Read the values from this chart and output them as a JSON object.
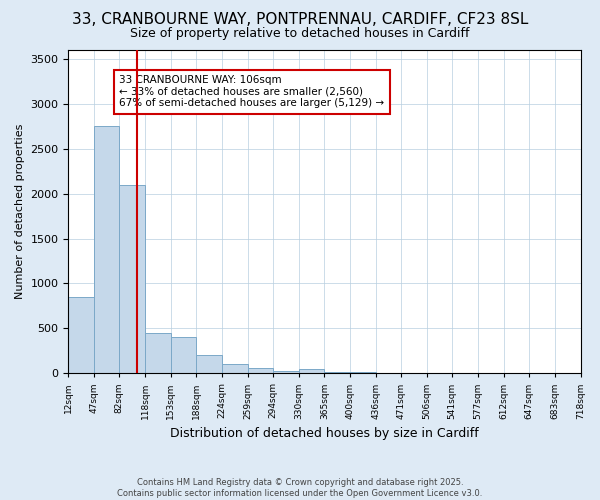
{
  "title_line1": "33, CRANBOURNE WAY, PONTPRENNAU, CARDIFF, CF23 8SL",
  "title_line2": "Size of property relative to detached houses in Cardiff",
  "xlabel": "Distribution of detached houses by size in Cardiff",
  "ylabel": "Number of detached properties",
  "bar_edges": [
    12,
    47,
    82,
    118,
    153,
    188,
    224,
    259,
    294,
    330,
    365,
    400,
    436,
    471,
    506,
    541,
    577,
    612,
    647,
    683,
    718
  ],
  "bar_heights": [
    850,
    2750,
    2100,
    450,
    400,
    200,
    100,
    60,
    30,
    50,
    15,
    10,
    5,
    5,
    3,
    2,
    2,
    1,
    1,
    0
  ],
  "bar_color": "#c5d8ea",
  "bar_edgecolor": "#7ba8c8",
  "property_sqm": 106,
  "vline_color": "#cc0000",
  "annotation_line1": "33 CRANBOURNE WAY: 106sqm",
  "annotation_line2": "← 33% of detached houses are smaller (2,560)",
  "annotation_line3": "67% of semi-detached houses are larger (5,129) →",
  "ylim": [
    0,
    3600
  ],
  "xlim": [
    12,
    718
  ],
  "yticks": [
    0,
    500,
    1000,
    1500,
    2000,
    2500,
    3000,
    3500
  ],
  "tick_labels": [
    "12sqm",
    "47sqm",
    "82sqm",
    "118sqm",
    "153sqm",
    "188sqm",
    "224sqm",
    "259sqm",
    "294sqm",
    "330sqm",
    "365sqm",
    "400sqm",
    "436sqm",
    "471sqm",
    "506sqm",
    "541sqm",
    "577sqm",
    "612sqm",
    "647sqm",
    "683sqm",
    "718sqm"
  ],
  "tick_positions": [
    12,
    47,
    82,
    118,
    153,
    188,
    224,
    259,
    294,
    330,
    365,
    400,
    436,
    471,
    506,
    541,
    577,
    612,
    647,
    683,
    718
  ],
  "footnote": "Contains HM Land Registry data © Crown copyright and database right 2025.\nContains public sector information licensed under the Open Government Licence v3.0.",
  "bg_color": "#deeaf5",
  "plot_bg_color": "#ffffff"
}
